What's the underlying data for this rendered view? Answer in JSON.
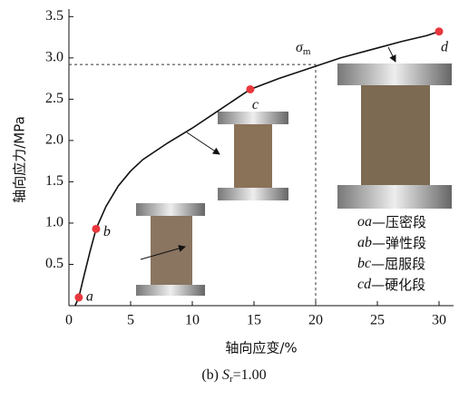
{
  "chart_data": {
    "type": "line",
    "x_label": "轴向应变/%",
    "y_label": "轴向应力/MPa",
    "caption": [
      "(b) ",
      "S",
      "r",
      "=1.00"
    ],
    "xlim": [
      0,
      31
    ],
    "ylim": [
      0,
      3.5
    ],
    "xticks": [
      0,
      5,
      10,
      15,
      20,
      25,
      30
    ],
    "yticks": [
      0.5,
      {
        "value": 1.0,
        "label": "1.0"
      },
      1.5,
      {
        "value": 2.0,
        "label": "2.0"
      },
      2.5,
      {
        "value": 3.0,
        "label": "3.0"
      },
      3.5
    ],
    "curve": {
      "color": "#111111",
      "x": [
        0.5,
        0.8,
        1.2,
        1.7,
        2.2,
        3,
        4,
        5,
        6,
        8,
        10,
        12,
        14.7,
        17,
        20,
        22,
        25,
        27,
        29,
        30
      ],
      "y": [
        0.0,
        0.1,
        0.35,
        0.65,
        0.93,
        1.2,
        1.45,
        1.63,
        1.77,
        1.97,
        2.15,
        2.35,
        2.62,
        2.75,
        2.9,
        3.0,
        3.12,
        3.2,
        3.27,
        3.32
      ]
    },
    "points": {
      "color": "#e8383d",
      "labels": [
        "a",
        "b",
        "c",
        "d"
      ],
      "x": [
        0.8,
        2.2,
        14.7,
        30
      ],
      "y": [
        0.1,
        0.93,
        2.62,
        3.32
      ]
    },
    "peak": {
      "label": [
        "σ",
        "m"
      ],
      "x": 20,
      "y": 2.92
    },
    "legend": [
      {
        "code": "oa",
        "text": "—压密段"
      },
      {
        "code": "ab",
        "text": "—弹性段"
      },
      {
        "code": "bc",
        "text": "—屈服段"
      },
      {
        "code": "cd",
        "text": "—硬化段"
      }
    ]
  }
}
